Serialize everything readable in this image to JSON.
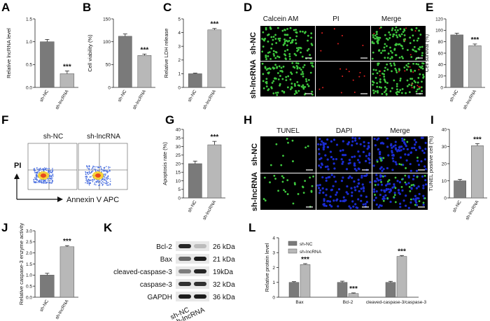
{
  "panels": {
    "A": {
      "letter": "A",
      "ylabel": "Relative lncRNA level",
      "ticks": [
        "0.0",
        "0.5",
        "1.0",
        "1.5"
      ],
      "ymax": 1.5,
      "categories": [
        "sh-NC",
        "sh-lncRNA"
      ],
      "values": [
        1.0,
        0.3
      ],
      "errors": [
        0.05,
        0.06
      ],
      "sig": "***"
    },
    "B": {
      "letter": "B",
      "ylabel": "Cell viability (%)",
      "ticks": [
        "0",
        "50",
        "100",
        "150"
      ],
      "ymax": 150,
      "categories": [
        "sh-NC",
        "sh-lncRNA"
      ],
      "values": [
        112,
        70
      ],
      "errors": [
        5,
        3
      ],
      "sig": "***"
    },
    "C": {
      "letter": "C",
      "ylabel": "Relative LDH release",
      "ticks": [
        "0",
        "1",
        "2",
        "3",
        "4",
        "5"
      ],
      "ymax": 5,
      "categories": [
        "sh-NC",
        "sh-lncRNA"
      ],
      "values": [
        1.0,
        4.2
      ],
      "errors": [
        0.04,
        0.1
      ],
      "sig": "***"
    },
    "E": {
      "letter": "E",
      "ylabel": "Cell survival (%)",
      "ticks": [
        "0",
        "20",
        "40",
        "60",
        "80",
        "100",
        "120"
      ],
      "ymax": 120,
      "categories": [
        "sh-NC",
        "sh-lncRNA"
      ],
      "values": [
        92,
        73
      ],
      "errors": [
        3,
        3
      ],
      "sig": "***"
    },
    "G": {
      "letter": "G",
      "ylabel": "Apoptosis rate (%)",
      "ticks": [
        "0",
        "5",
        "10",
        "15",
        "20",
        "25",
        "30",
        "35",
        "40"
      ],
      "ymax": 40,
      "categories": [
        "sh-NC",
        "sh-lncRNA"
      ],
      "values": [
        20,
        31
      ],
      "errors": [
        1.5,
        2
      ],
      "sig": "***"
    },
    "I": {
      "letter": "I",
      "ylabel": "TUNEL positive cell (%)",
      "ticks": [
        "0",
        "10",
        "20",
        "30",
        "40"
      ],
      "ymax": 40,
      "categories": [
        "sh-NC",
        "sh-lncRNA"
      ],
      "values": [
        10,
        30.5
      ],
      "errors": [
        0.8,
        1.2
      ],
      "sig": "***"
    },
    "J": {
      "letter": "J",
      "ylabel": "Relative caspase-3 enzyme activity",
      "ticks": [
        "0.0",
        "0.5",
        "1.0",
        "1.5",
        "2.0",
        "2.5",
        "3.0"
      ],
      "ymax": 3.0,
      "categories": [
        "sh-NC",
        "sh-lncRNA"
      ],
      "values": [
        1.0,
        2.28
      ],
      "errors": [
        0.08,
        0.05
      ],
      "sig": "***"
    },
    "L": {
      "letter": "L",
      "ylabel": "Relative protein level",
      "ticks": [
        "0",
        "1",
        "2",
        "3",
        "4"
      ],
      "ymax": 4,
      "groups": [
        "Bax",
        "Bcl-2",
        "cleaved-caspase-3/caspase-3"
      ],
      "legend": [
        "sh-NC",
        "sh-lncRNA"
      ],
      "series": [
        {
          "values": [
            1.0,
            1.0,
            1.0
          ],
          "errors": [
            0.05,
            0.08,
            0.07
          ]
        },
        {
          "values": [
            2.2,
            0.25,
            2.75
          ],
          "errors": [
            0.06,
            0.04,
            0.06
          ]
        }
      ],
      "sig": [
        "***",
        "***",
        "***"
      ]
    }
  },
  "D": {
    "letter": "D",
    "columns": [
      "Calcein AM",
      "PI",
      "Merge"
    ],
    "rows": [
      "sh-NC",
      "sh-lncRNA"
    ]
  },
  "F": {
    "letter": "F",
    "titles": [
      "sh-NC",
      "sh-lncRNA"
    ],
    "ylabel": "PI",
    "xlabel": "Annexin V APC"
  },
  "H": {
    "letter": "H",
    "columns": [
      "TUNEL",
      "DAPI",
      "Merge"
    ],
    "rows": [
      "sh-NC",
      "sh-lncRNA"
    ]
  },
  "K": {
    "letter": "K",
    "proteins": [
      "Bcl-2",
      "Bax",
      "cleaved-caspase-3",
      "caspase-3",
      "GAPDH"
    ],
    "sizes": [
      "26 kDa",
      "21 kDa",
      "19kDa",
      "32 kDa",
      "36 kDa"
    ],
    "lanes": [
      "sh-NC",
      "sh-lncRNA"
    ]
  },
  "colors": {
    "dark": "#7a7a7a",
    "light": "#b8b8b8",
    "green": "#3ec83e",
    "blue": "#1a2bd0",
    "red": "#e02020"
  }
}
